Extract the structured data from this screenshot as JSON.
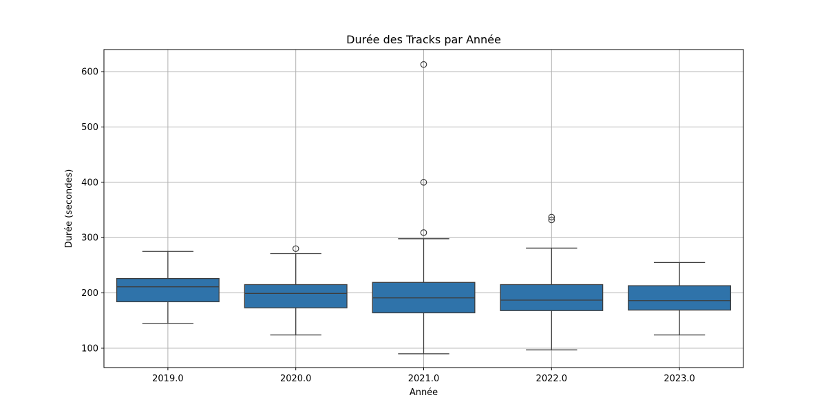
{
  "chart_data": {
    "type": "box",
    "title": "Durée des Tracks par Année",
    "xlabel": "Année",
    "ylabel": "Durée (secondes)",
    "categories": [
      "2019.0",
      "2020.0",
      "2021.0",
      "2022.0",
      "2023.0"
    ],
    "boxes": [
      {
        "whisker_low": 145,
        "q1": 184,
        "median": 211,
        "q3": 226,
        "whisker_high": 275,
        "outliers": []
      },
      {
        "whisker_low": 124,
        "q1": 173,
        "median": 199,
        "q3": 215,
        "whisker_high": 271,
        "outliers": [
          280
        ]
      },
      {
        "whisker_low": 90,
        "q1": 164,
        "median": 191,
        "q3": 219,
        "whisker_high": 298,
        "outliers": [
          309,
          400,
          613
        ]
      },
      {
        "whisker_low": 97,
        "q1": 168,
        "median": 187,
        "q3": 215,
        "whisker_high": 281,
        "outliers": [
          332,
          337
        ]
      },
      {
        "whisker_low": 124,
        "q1": 169,
        "median": 186,
        "q3": 213,
        "whisker_high": 255,
        "outliers": []
      }
    ],
    "yticks": [
      100,
      200,
      300,
      400,
      500,
      600
    ],
    "ylim": [
      65,
      640
    ],
    "grid": true,
    "box_color": "#2f73aa",
    "line_color": "#3d3d3d",
    "grid_color": "#b0b0b0"
  }
}
